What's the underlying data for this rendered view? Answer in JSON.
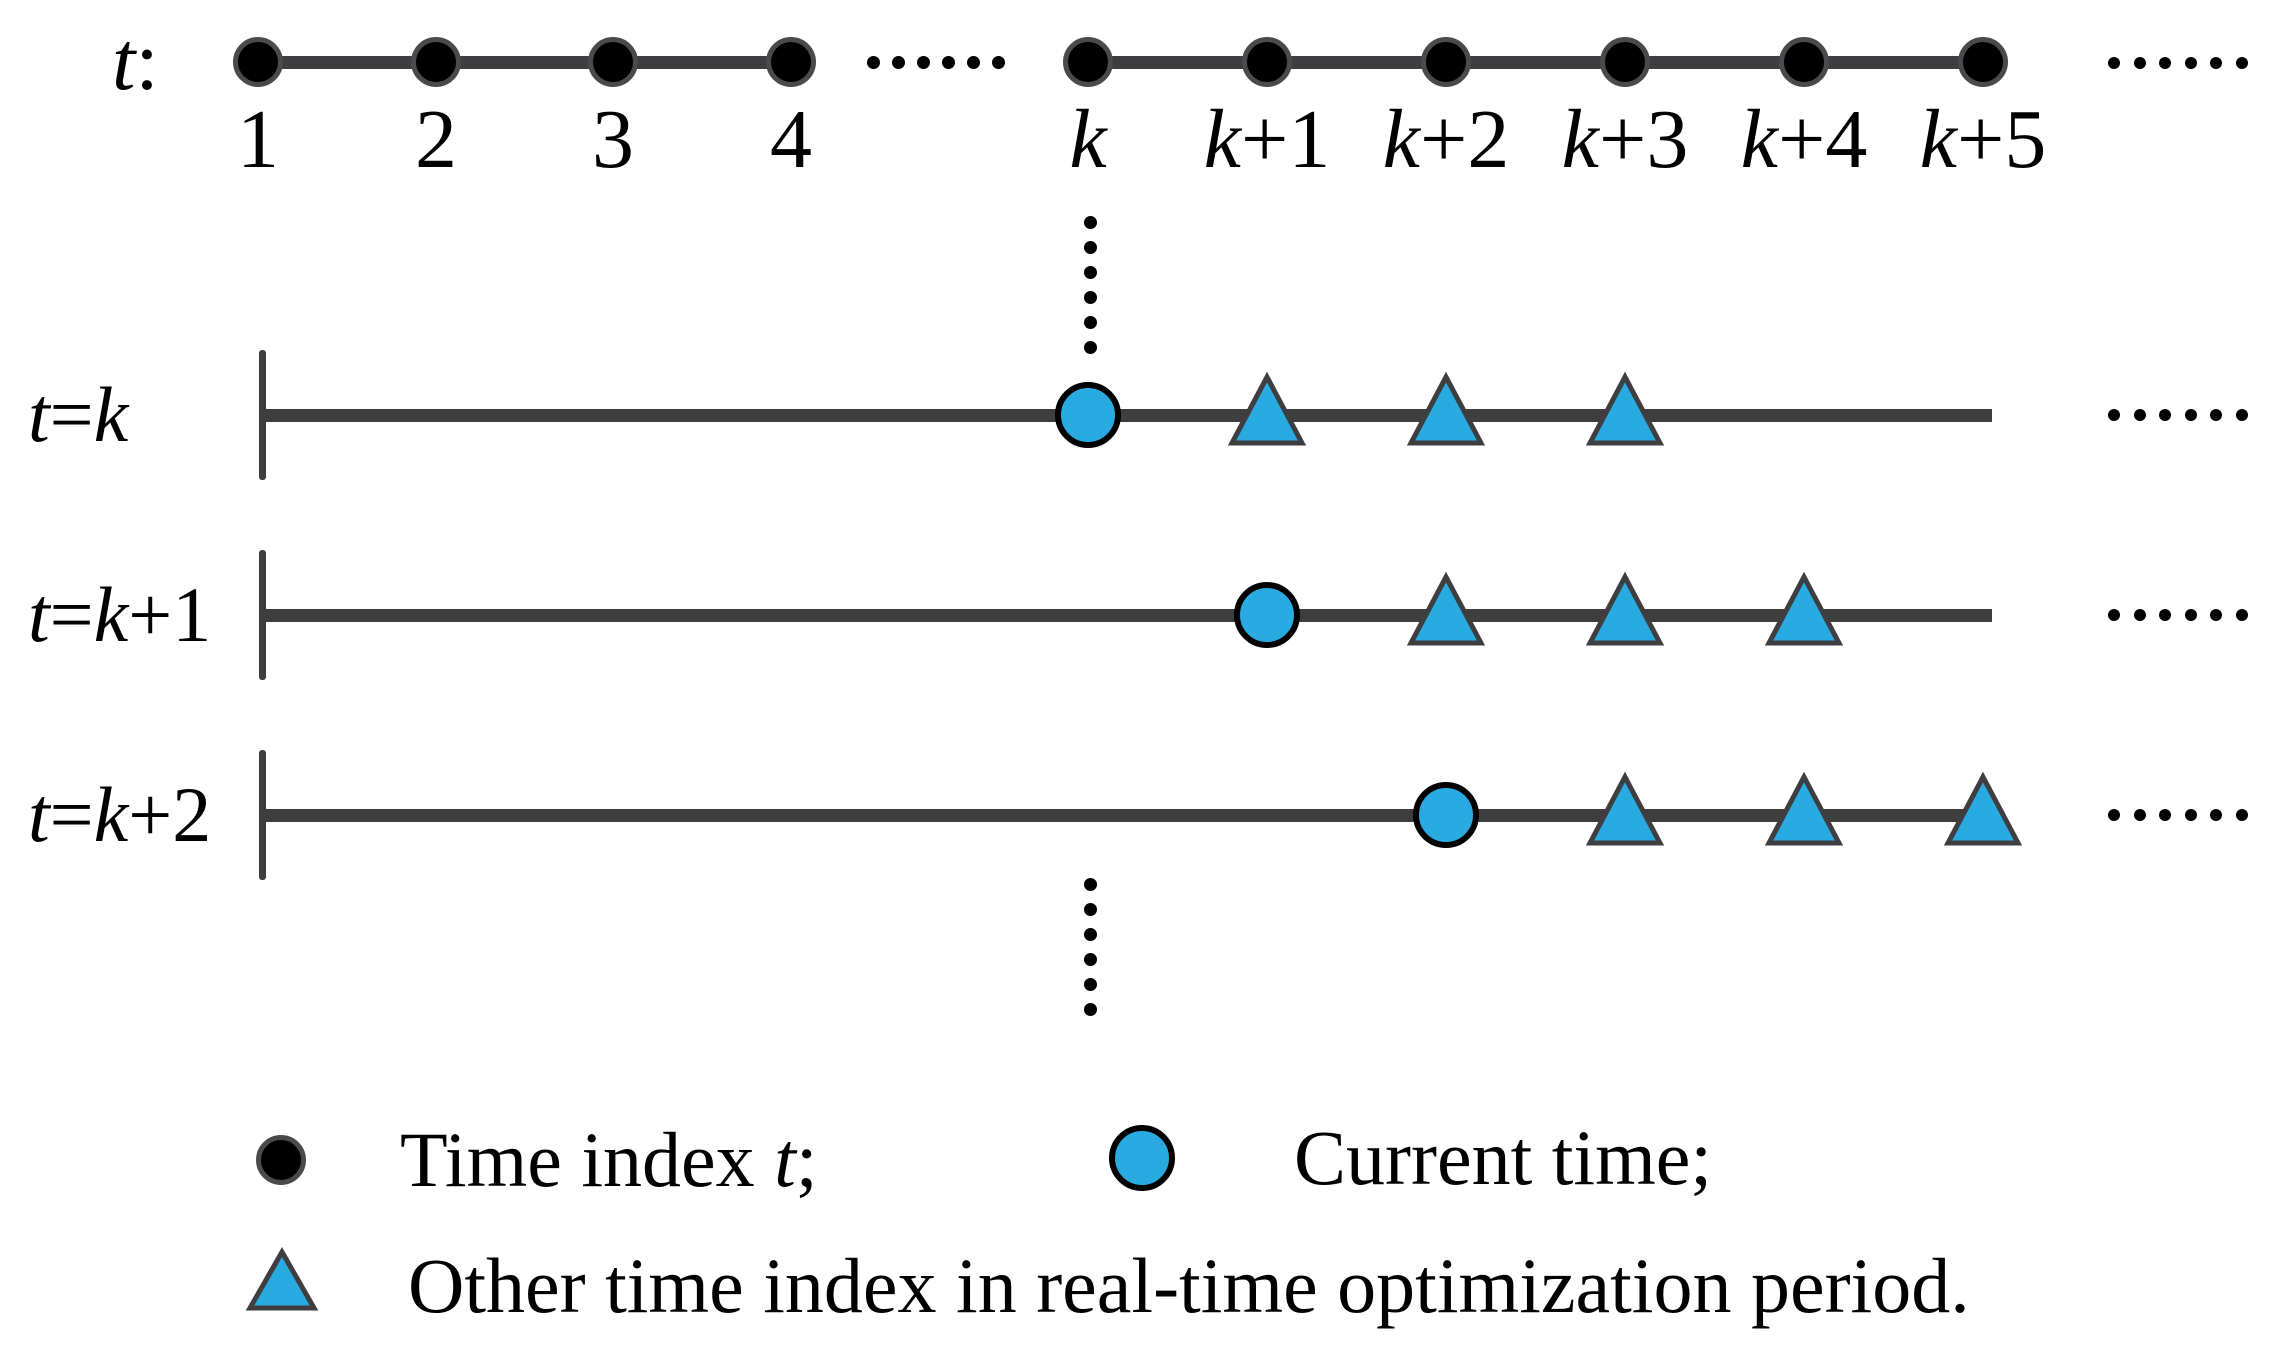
{
  "colors": {
    "cyan": "#29ABE2",
    "line_gray": "#3E3E40",
    "ring_gray": "#4A4A4C",
    "black": "#000000",
    "background": "#FFFFFF"
  },
  "top_timeline": {
    "axis_label": "t:",
    "tick_labels": [
      "1",
      "2",
      "3",
      "4",
      "k",
      "k+1",
      "k+2",
      "k+3",
      "k+4",
      "k+5"
    ],
    "mid_ellipsis": "······",
    "end_ellipsis": "······"
  },
  "vertical_ellipsis_top": "⋮",
  "vertical_ellipsis_bottom": "⋮",
  "optimization_rows": [
    {
      "label": "t=k",
      "current": "k",
      "horizon": [
        "k+1",
        "k+2",
        "k+3"
      ],
      "end_ellipsis": "······"
    },
    {
      "label": "t=k+1",
      "current": "k+1",
      "horizon": [
        "k+2",
        "k+3",
        "k+4"
      ],
      "end_ellipsis": "······"
    },
    {
      "label": "t=k+2",
      "current": "k+2",
      "horizon": [
        "k+3",
        "k+4",
        "k+5"
      ],
      "end_ellipsis": "······"
    }
  ],
  "legend": {
    "items": [
      {
        "marker": "black-dot",
        "label": "Time index t;"
      },
      {
        "marker": "cyan-circle",
        "label": "Current time;"
      },
      {
        "marker": "cyan-triangle",
        "label": "Other time index in real-time optimization period."
      }
    ]
  }
}
